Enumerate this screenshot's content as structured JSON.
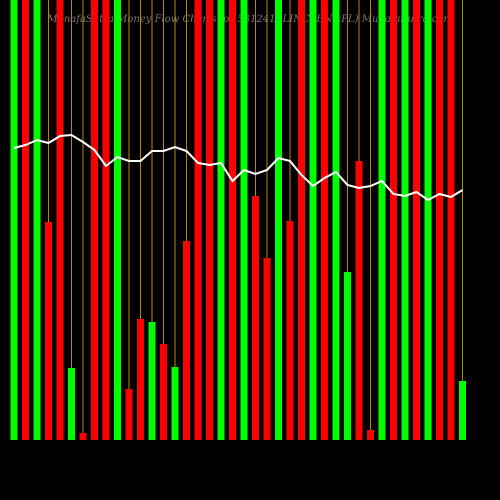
{
  "chart_data": {
    "type": "bar",
    "title": "MunafaSutra Money Flow Charts for 531241 (LINCPEN&PL) MunafaSutra.com",
    "ylim": [
      0,
      440
    ],
    "values": [
      440,
      440,
      440,
      218,
      440,
      72,
      7,
      440,
      440,
      440,
      51,
      121,
      118,
      96,
      73,
      199,
      440,
      440,
      440,
      440,
      440,
      244,
      182,
      440,
      219,
      440,
      440,
      440,
      440,
      168,
      279,
      10,
      440,
      440,
      440,
      440,
      440,
      440,
      440,
      59
    ],
    "colors": [
      "#00ff00",
      "#ff0000",
      "#00ff00",
      "#ff0000",
      "#ff0000",
      "#00ff00",
      "#ff0000",
      "#ff0000",
      "#ff0000",
      "#00ff00",
      "#ff0000",
      "#ff0000",
      "#00ff00",
      "#ff0000",
      "#00ff00",
      "#ff0000",
      "#ff0000",
      "#ff0000",
      "#00ff00",
      "#ff0000",
      "#00ff00",
      "#ff0000",
      "#ff0000",
      "#00ff00",
      "#ff0000",
      "#ff0000",
      "#00ff00",
      "#ff0000",
      "#00ff00",
      "#00ff00",
      "#ff0000",
      "#ff0000",
      "#00ff00",
      "#ff0000",
      "#00ff00",
      "#ff0000",
      "#00ff00",
      "#ff0000",
      "#ff0000",
      "#00ff00"
    ],
    "line": {
      "color": "#ffffff",
      "values": [
        292,
        295,
        300,
        297,
        304,
        305,
        298,
        290,
        274,
        283,
        279,
        279,
        289,
        289,
        293,
        289,
        277,
        275,
        277,
        259,
        270,
        266,
        270,
        282,
        279,
        265,
        254,
        262,
        268,
        255,
        252,
        254,
        259,
        246,
        244,
        248,
        240,
        246,
        243,
        250
      ]
    },
    "guide_color": "#b8860b"
  }
}
